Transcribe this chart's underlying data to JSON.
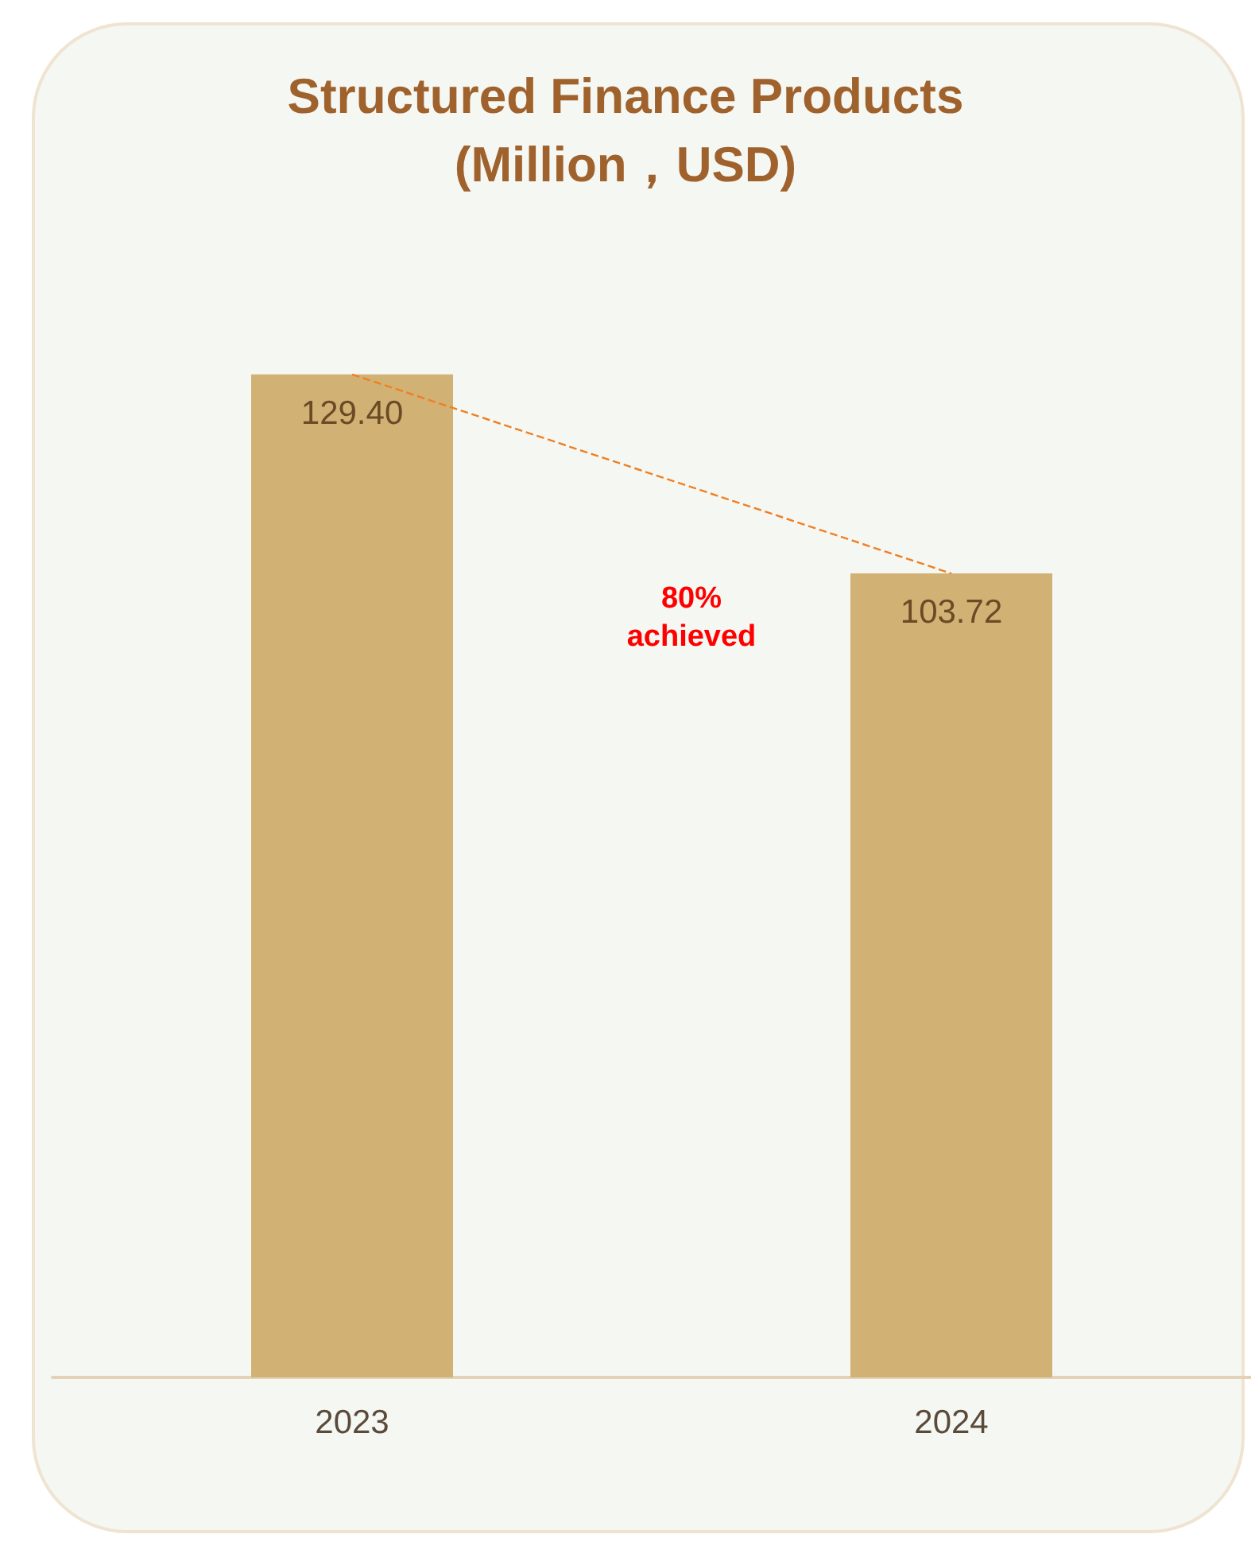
{
  "chart_data": {
    "type": "bar",
    "title": "Structured Finance Products",
    "subtitle": "(Million，USD)",
    "categories": [
      "2023",
      "2024"
    ],
    "series": [
      {
        "color": "#d2b174",
        "values": [
          129.4,
          103.72
        ],
        "value_labels": [
          "129.40",
          "103.72"
        ]
      },
      {
        "type": "line",
        "color": "#f07f22",
        "values": [
          129.4,
          103.72
        ],
        "line_style": "dashed",
        "marker": "none"
      }
    ],
    "annotations": [
      "80% achieved"
    ],
    "tick_labels": "x",
    "grid": false
  }
}
